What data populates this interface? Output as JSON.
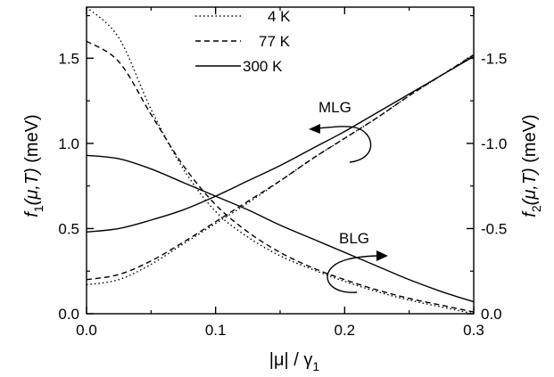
{
  "chart_data": {
    "type": "line",
    "x_axis": {
      "label_prefix": "|μ| / γ",
      "label_sub": "1",
      "lim": [
        0.0,
        0.3
      ],
      "ticks": [
        0.0,
        0.1,
        0.2,
        0.3
      ],
      "tick_labels": [
        "0.0",
        "0.1",
        "0.2",
        "0.3"
      ]
    },
    "y_left": {
      "label_main": "f",
      "label_sub": "1",
      "label_args": "(μ,T)",
      "label_unit": " (meV)",
      "lim": [
        0.0,
        1.8
      ],
      "ticks": [
        0.0,
        0.5,
        1.0,
        1.5
      ],
      "tick_labels": [
        "0.0",
        "0.5",
        "1.0",
        "1.5"
      ]
    },
    "y_right": {
      "label_main": "f",
      "label_sub": "2",
      "label_args": "(μ,T)",
      "label_unit": " (meV)",
      "lim": [
        0.0,
        -1.8
      ],
      "ticks": [
        0.0,
        -0.5,
        -1.0,
        -1.5
      ],
      "tick_labels": [
        "0.0",
        "-0.5",
        "-1.0",
        "-1.5"
      ]
    },
    "legend": [
      {
        "label": "4 K",
        "dash": "dotted"
      },
      {
        "label": "77 K",
        "dash": "dashed"
      },
      {
        "label": "300 K",
        "dash": "solid"
      }
    ],
    "x": [
      0.0,
      0.025,
      0.05,
      0.075,
      0.1,
      0.125,
      0.15,
      0.175,
      0.2,
      0.225,
      0.25,
      0.275,
      0.3
    ],
    "series": [
      {
        "group": "f1",
        "temp": "4 K",
        "dash": "dotted",
        "values": [
          1.8,
          1.62,
          1.2,
          0.85,
          0.6,
          0.45,
          0.34,
          0.26,
          0.19,
          0.13,
          0.08,
          0.04,
          0.0
        ]
      },
      {
        "group": "f1",
        "temp": "77 K",
        "dash": "dashed",
        "values": [
          1.6,
          1.48,
          1.17,
          0.87,
          0.64,
          0.48,
          0.36,
          0.27,
          0.2,
          0.14,
          0.09,
          0.05,
          0.01
        ]
      },
      {
        "group": "f1",
        "temp": "300 K",
        "dash": "solid",
        "values": [
          0.93,
          0.91,
          0.85,
          0.77,
          0.69,
          0.61,
          0.52,
          0.44,
          0.36,
          0.28,
          0.2,
          0.13,
          0.07
        ]
      },
      {
        "group": "f2",
        "temp": "4 K",
        "dash": "dotted",
        "values": [
          -0.17,
          -0.2,
          -0.29,
          -0.41,
          -0.53,
          -0.65,
          -0.78,
          -0.91,
          -1.03,
          -1.15,
          -1.28,
          -1.4,
          -1.52
        ]
      },
      {
        "group": "f2",
        "temp": "77 K",
        "dash": "dashed",
        "values": [
          -0.2,
          -0.23,
          -0.31,
          -0.42,
          -0.54,
          -0.66,
          -0.78,
          -0.91,
          -1.03,
          -1.15,
          -1.28,
          -1.4,
          -1.52
        ]
      },
      {
        "group": "f2",
        "temp": "300 K",
        "dash": "solid",
        "values": [
          -0.48,
          -0.5,
          -0.55,
          -0.61,
          -0.69,
          -0.78,
          -0.87,
          -0.97,
          -1.07,
          -1.18,
          -1.29,
          -1.4,
          -1.51
        ]
      }
    ],
    "annotations": [
      {
        "text": "MLG"
      },
      {
        "text": "BLG"
      }
    ],
    "grid": false
  }
}
